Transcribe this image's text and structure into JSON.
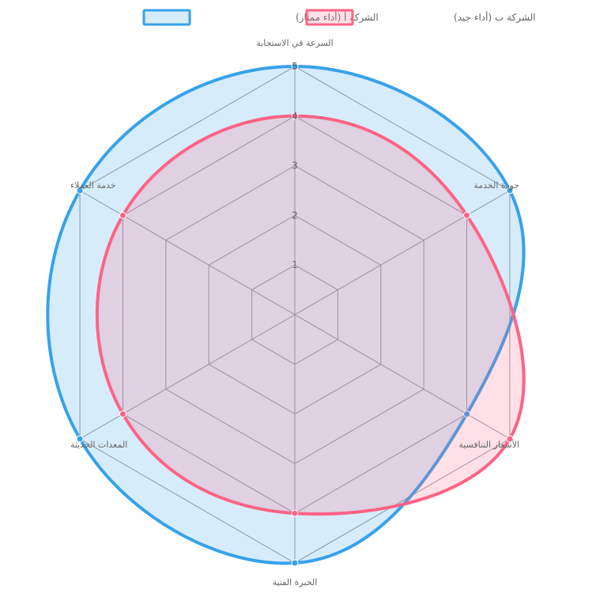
{
  "chart_data": {
    "type": "radar",
    "axes": [
      "السرعة في الاستجابة",
      "جودة الخدمة",
      "الأسعار التنافسية",
      "الخبرة الفنية",
      "المعدات الحديثة",
      "خدمة العملاء"
    ],
    "ticks": [
      "1",
      "2",
      "3",
      "4",
      "5"
    ],
    "range": [
      0,
      5
    ],
    "grid": true,
    "legend_position": "top",
    "series": [
      {
        "name": "الشركة أ (أداء ممتاز)",
        "values": [
          5,
          5,
          4,
          5,
          5,
          5
        ],
        "color": "#36a2eb",
        "fill": "rgba(54,162,235,0.2)"
      },
      {
        "name": "الشركة ب (أداء جيد)",
        "values": [
          4,
          4,
          5,
          4,
          4,
          4
        ],
        "color": "#ff6384",
        "fill": "rgba(255,99,132,0.2)"
      }
    ]
  }
}
